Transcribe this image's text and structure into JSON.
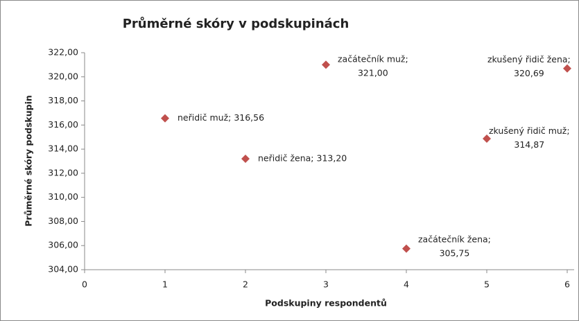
{
  "chart_data": {
    "type": "scatter",
    "title": "Průměrné skóry v podskupinách",
    "xlabel": "Podskupiny respondentů",
    "ylabel": "Průměrné skóry podskupin",
    "series": [
      {
        "color": "#c0504d",
        "x": [
          1,
          2,
          3,
          4,
          5,
          6
        ],
        "values": [
          316.56,
          313.2,
          321.0,
          305.75,
          314.87,
          320.69
        ],
        "value_labels": [
          "neřidič muž; 316,56",
          "neřidič žena; 313,20",
          "začátečník muž; 321,00",
          "začátečník žena; 305,75",
          "zkušený řidič muž; 314,87",
          "zkušený řidič žena; 320,69"
        ]
      }
    ],
    "xlim": [
      0,
      6
    ],
    "xticks": [
      0,
      1,
      2,
      3,
      4,
      5,
      6
    ],
    "ylim": [
      304,
      322
    ],
    "yticks": [
      {
        "value": 304,
        "label": "304,00"
      },
      {
        "value": 306,
        "label": "306,00"
      },
      {
        "value": 308,
        "label": "308,00"
      },
      {
        "value": 310,
        "label": "310,00"
      },
      {
        "value": 312,
        "label": "312,00"
      },
      {
        "value": 314,
        "label": "314,00"
      },
      {
        "value": 316,
        "label": "316,00"
      },
      {
        "value": 318,
        "label": "318,00"
      },
      {
        "value": 320,
        "label": "320,00"
      },
      {
        "value": 322,
        "label": "322,00"
      }
    ],
    "grid": false
  }
}
